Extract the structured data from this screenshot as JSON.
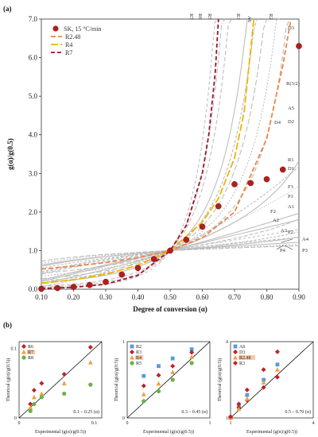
{
  "panel_labels": {
    "a": "(a)",
    "b": "(b)"
  },
  "colors": {
    "data": "#b0201c",
    "R2_48": "#e8874a",
    "R4": "#f0b400",
    "R7": "#a01228",
    "grey": "#bdbdbd",
    "orange_marker": "#f0a040",
    "green_marker": "#6cb04a",
    "blue_marker": "#5b9bd5"
  },
  "chart_data": [
    {
      "type": "scatter",
      "ylabel": "g(α)/g(0.5)",
      "xlabel": "Degree of conversion (α)",
      "xlim": [
        0.1,
        0.9
      ],
      "ylim": [
        0.0,
        7.0
      ],
      "xticks": [
        "0.10",
        "0.20",
        "0.30",
        "0.40",
        "0.50",
        "0.60",
        "0.70",
        "0.80",
        "0.90"
      ],
      "yticks": [
        "0.0",
        "1.0",
        "2.0",
        "3.0",
        "4.0",
        "5.0",
        "6.0",
        "7.0"
      ],
      "legend": [
        "SK, 15 °C/min",
        "R2.48",
        "R4",
        "R7"
      ],
      "series": [
        {
          "name": "SK, 15 °C/min",
          "x": [
            0.1,
            0.15,
            0.2,
            0.25,
            0.3,
            0.35,
            0.4,
            0.45,
            0.5,
            0.55,
            0.6,
            0.65,
            0.7,
            0.75,
            0.8,
            0.85,
            0.9
          ],
          "y": [
            0.01,
            0.03,
            0.06,
            0.11,
            0.19,
            0.38,
            0.55,
            0.78,
            1.0,
            1.28,
            1.62,
            2.15,
            2.72,
            2.75,
            2.85,
            3.1,
            6.3
          ]
        },
        {
          "name": "R2.48",
          "x": [
            0.1,
            0.2,
            0.3,
            0.4,
            0.5,
            0.6,
            0.7,
            0.8,
            0.85,
            0.875
          ],
          "y": [
            0.52,
            0.6,
            0.69,
            0.82,
            1.0,
            1.33,
            2.0,
            3.9,
            5.8,
            7.0
          ]
        },
        {
          "name": "R4",
          "x": [
            0.1,
            0.2,
            0.3,
            0.4,
            0.5,
            0.6,
            0.65,
            0.7,
            0.73,
            0.76
          ],
          "y": [
            0.15,
            0.25,
            0.39,
            0.62,
            1.0,
            1.74,
            2.35,
            3.4,
            4.6,
            7.0
          ]
        },
        {
          "name": "R7",
          "x": [
            0.1,
            0.2,
            0.3,
            0.4,
            0.5,
            0.55,
            0.6,
            0.62,
            0.64,
            0.65
          ],
          "y": [
            0.02,
            0.05,
            0.13,
            0.36,
            1.0,
            1.65,
            3.0,
            4.0,
            5.6,
            7.0
          ]
        }
      ],
      "curve_labels": [
        "R7",
        "R6",
        "R5",
        "R3",
        "A6",
        "R2",
        "D3",
        "R(3/2)",
        "A5",
        "D4",
        "D2",
        "R1",
        "D1",
        "F3",
        "P1",
        "A1",
        "F2",
        "A2",
        "A3",
        "P2",
        "A4",
        "P4",
        "P3"
      ]
    },
    {
      "type": "scatter",
      "xlabel": "Experimental (g(α)/g(0.5))",
      "ylabel": "Theorical (g(α)/g(0.5))",
      "range_note": "0.1 – 0.25 (α)",
      "xticks": [
        "0",
        "0.1"
      ],
      "yticks": [
        "0",
        "0.1"
      ],
      "legend": [
        "R6",
        "R7",
        "R8"
      ],
      "series": [
        {
          "name": "R6",
          "x": [
            0.015,
            0.02,
            0.03,
            0.06,
            0.095
          ],
          "y": [
            0.02,
            0.04,
            0.05,
            0.063,
            0.102
          ]
        },
        {
          "name": "R7",
          "x": [
            0.015,
            0.02,
            0.03,
            0.06,
            0.095
          ],
          "y": [
            0.015,
            0.03,
            0.035,
            0.05,
            0.08
          ]
        },
        {
          "name": "R8",
          "x": [
            0.015,
            0.02,
            0.03,
            0.06,
            0.095
          ],
          "y": [
            0.01,
            0.02,
            0.03,
            0.035,
            0.048
          ]
        }
      ]
    },
    {
      "type": "scatter",
      "xlabel": "Experimental (g(α)/g(0.5))",
      "ylabel": "Theorical (g(α)/g(0.5))",
      "range_note": "0.3 – 0.45 (α)",
      "xticks": [
        "0",
        "1"
      ],
      "yticks": [
        "0",
        "1"
      ],
      "legend": [
        "R2",
        "R3",
        "R4",
        "R5"
      ],
      "series": [
        {
          "name": "R2",
          "x": [
            0.2,
            0.38,
            0.55,
            0.78
          ],
          "y": [
            0.55,
            0.68,
            0.78,
            0.9
          ]
        },
        {
          "name": "R3",
          "x": [
            0.2,
            0.38,
            0.55,
            0.78
          ],
          "y": [
            0.42,
            0.56,
            0.68,
            0.86
          ]
        },
        {
          "name": "R4",
          "x": [
            0.2,
            0.38,
            0.55,
            0.78
          ],
          "y": [
            0.31,
            0.45,
            0.6,
            0.8
          ]
        },
        {
          "name": "R5",
          "x": [
            0.2,
            0.38,
            0.55,
            0.78
          ],
          "y": [
            0.22,
            0.35,
            0.5,
            0.72
          ]
        }
      ]
    },
    {
      "type": "scatter",
      "xlabel": "Experimental (g(α)/g(0.5))",
      "ylabel": "Theorical (g(α)/g(0.5))",
      "range_note": "0.5 – 0.70 (α)",
      "xticks": [
        "1",
        "4"
      ],
      "yticks": [
        "1",
        "4"
      ],
      "legend": [
        "A6",
        "D3",
        "R2.48",
        "R3"
      ],
      "series": [
        {
          "name": "A6",
          "x": [
            1.0,
            1.3,
            1.6,
            2.2,
            2.7
          ],
          "y": [
            1.0,
            1.5,
            1.9,
            2.5,
            3.1
          ]
        },
        {
          "name": "D3",
          "x": [
            1.0,
            1.3,
            1.6,
            2.2,
            2.7
          ],
          "y": [
            1.0,
            1.4,
            1.7,
            2.2,
            2.6
          ]
        },
        {
          "name": "R2.48",
          "x": [
            1.0,
            1.3,
            1.6,
            2.2,
            2.7
          ],
          "y": [
            1.0,
            1.35,
            1.75,
            2.4,
            2.9
          ]
        },
        {
          "name": "R3",
          "x": [
            1.0,
            1.3,
            1.6,
            2.2,
            2.7
          ],
          "y": [
            1.05,
            1.55,
            2.1,
            2.9,
            3.6
          ]
        }
      ]
    }
  ]
}
